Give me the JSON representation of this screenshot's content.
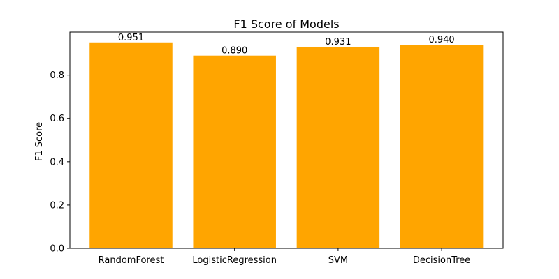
{
  "chart_data": {
    "type": "bar",
    "title": "F1 Score of Models",
    "xlabel": "",
    "ylabel": "F1 Score",
    "categories": [
      "RandomForest",
      "LogisticRegression",
      "SVM",
      "DecisionTree"
    ],
    "values": [
      0.951,
      0.89,
      0.931,
      0.94
    ],
    "data_labels": [
      "0.951",
      "0.890",
      "0.931",
      "0.940"
    ],
    "ylim": [
      0,
      1.0
    ],
    "yticks": [
      "0.0",
      "0.2",
      "0.4",
      "0.6",
      "0.8"
    ],
    "ytick_values": [
      0.0,
      0.2,
      0.4,
      0.6,
      0.8
    ],
    "bar_color": "#FFA500",
    "grid": false,
    "legend": "none"
  }
}
